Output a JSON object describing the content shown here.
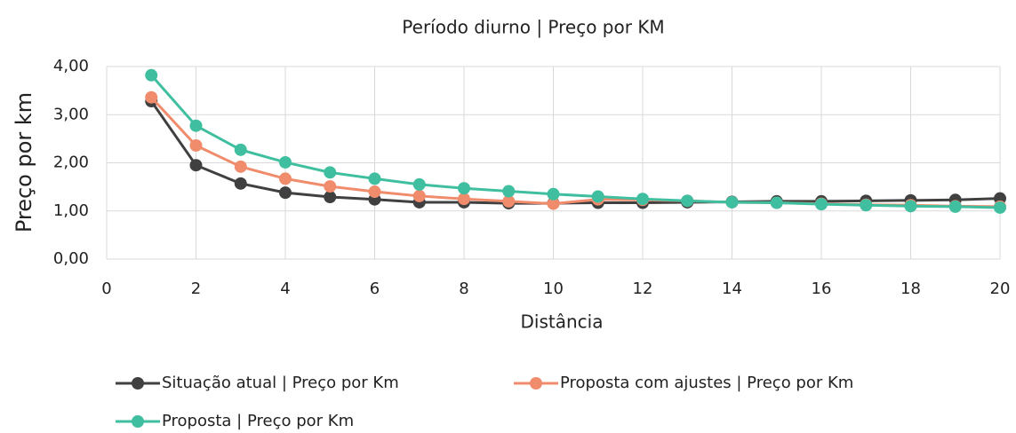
{
  "chart_data": {
    "type": "line",
    "title": "Período diurno | Preço por KM",
    "x_label": "Distância",
    "y_label": "Preço por km",
    "x": [
      1,
      2,
      3,
      4,
      5,
      6,
      7,
      8,
      9,
      10,
      11,
      12,
      13,
      14,
      15,
      16,
      17,
      18,
      19,
      20
    ],
    "xlim": [
      0,
      20
    ],
    "xticks": [
      0,
      2,
      4,
      6,
      8,
      10,
      12,
      14,
      16,
      18,
      20
    ],
    "ylim": [
      0,
      4
    ],
    "yticks": [
      {
        "value": 0,
        "label": "0,00"
      },
      {
        "value": 1,
        "label": "1,00"
      },
      {
        "value": 2,
        "label": "2,00"
      },
      {
        "value": 3,
        "label": "3,00"
      },
      {
        "value": 4,
        "label": "4,00"
      }
    ],
    "grid": true,
    "legend": "bottom",
    "series": [
      {
        "name": "Situação atual | Preço por Km",
        "color": "#404040",
        "values": [
          3.28,
          1.95,
          1.57,
          1.38,
          1.29,
          1.24,
          1.18,
          1.18,
          1.16,
          1.16,
          1.17,
          1.17,
          1.18,
          1.19,
          1.2,
          1.2,
          1.21,
          1.22,
          1.23,
          1.26
        ]
      },
      {
        "name": "Proposta com ajustes | Preço por Km",
        "color": "#f08c6c",
        "values": [
          3.36,
          2.36,
          1.92,
          1.67,
          1.51,
          1.4,
          1.31,
          1.25,
          1.2,
          1.15,
          1.24,
          1.23,
          1.21,
          1.18,
          1.17,
          1.15,
          1.13,
          1.12,
          1.1,
          1.09
        ]
      },
      {
        "name": "Proposta | Preço por Km",
        "color": "#3fbf9f",
        "values": [
          3.82,
          2.77,
          2.27,
          2.01,
          1.8,
          1.67,
          1.55,
          1.47,
          1.41,
          1.35,
          1.3,
          1.25,
          1.21,
          1.18,
          1.17,
          1.14,
          1.12,
          1.1,
          1.09,
          1.07
        ]
      }
    ]
  }
}
